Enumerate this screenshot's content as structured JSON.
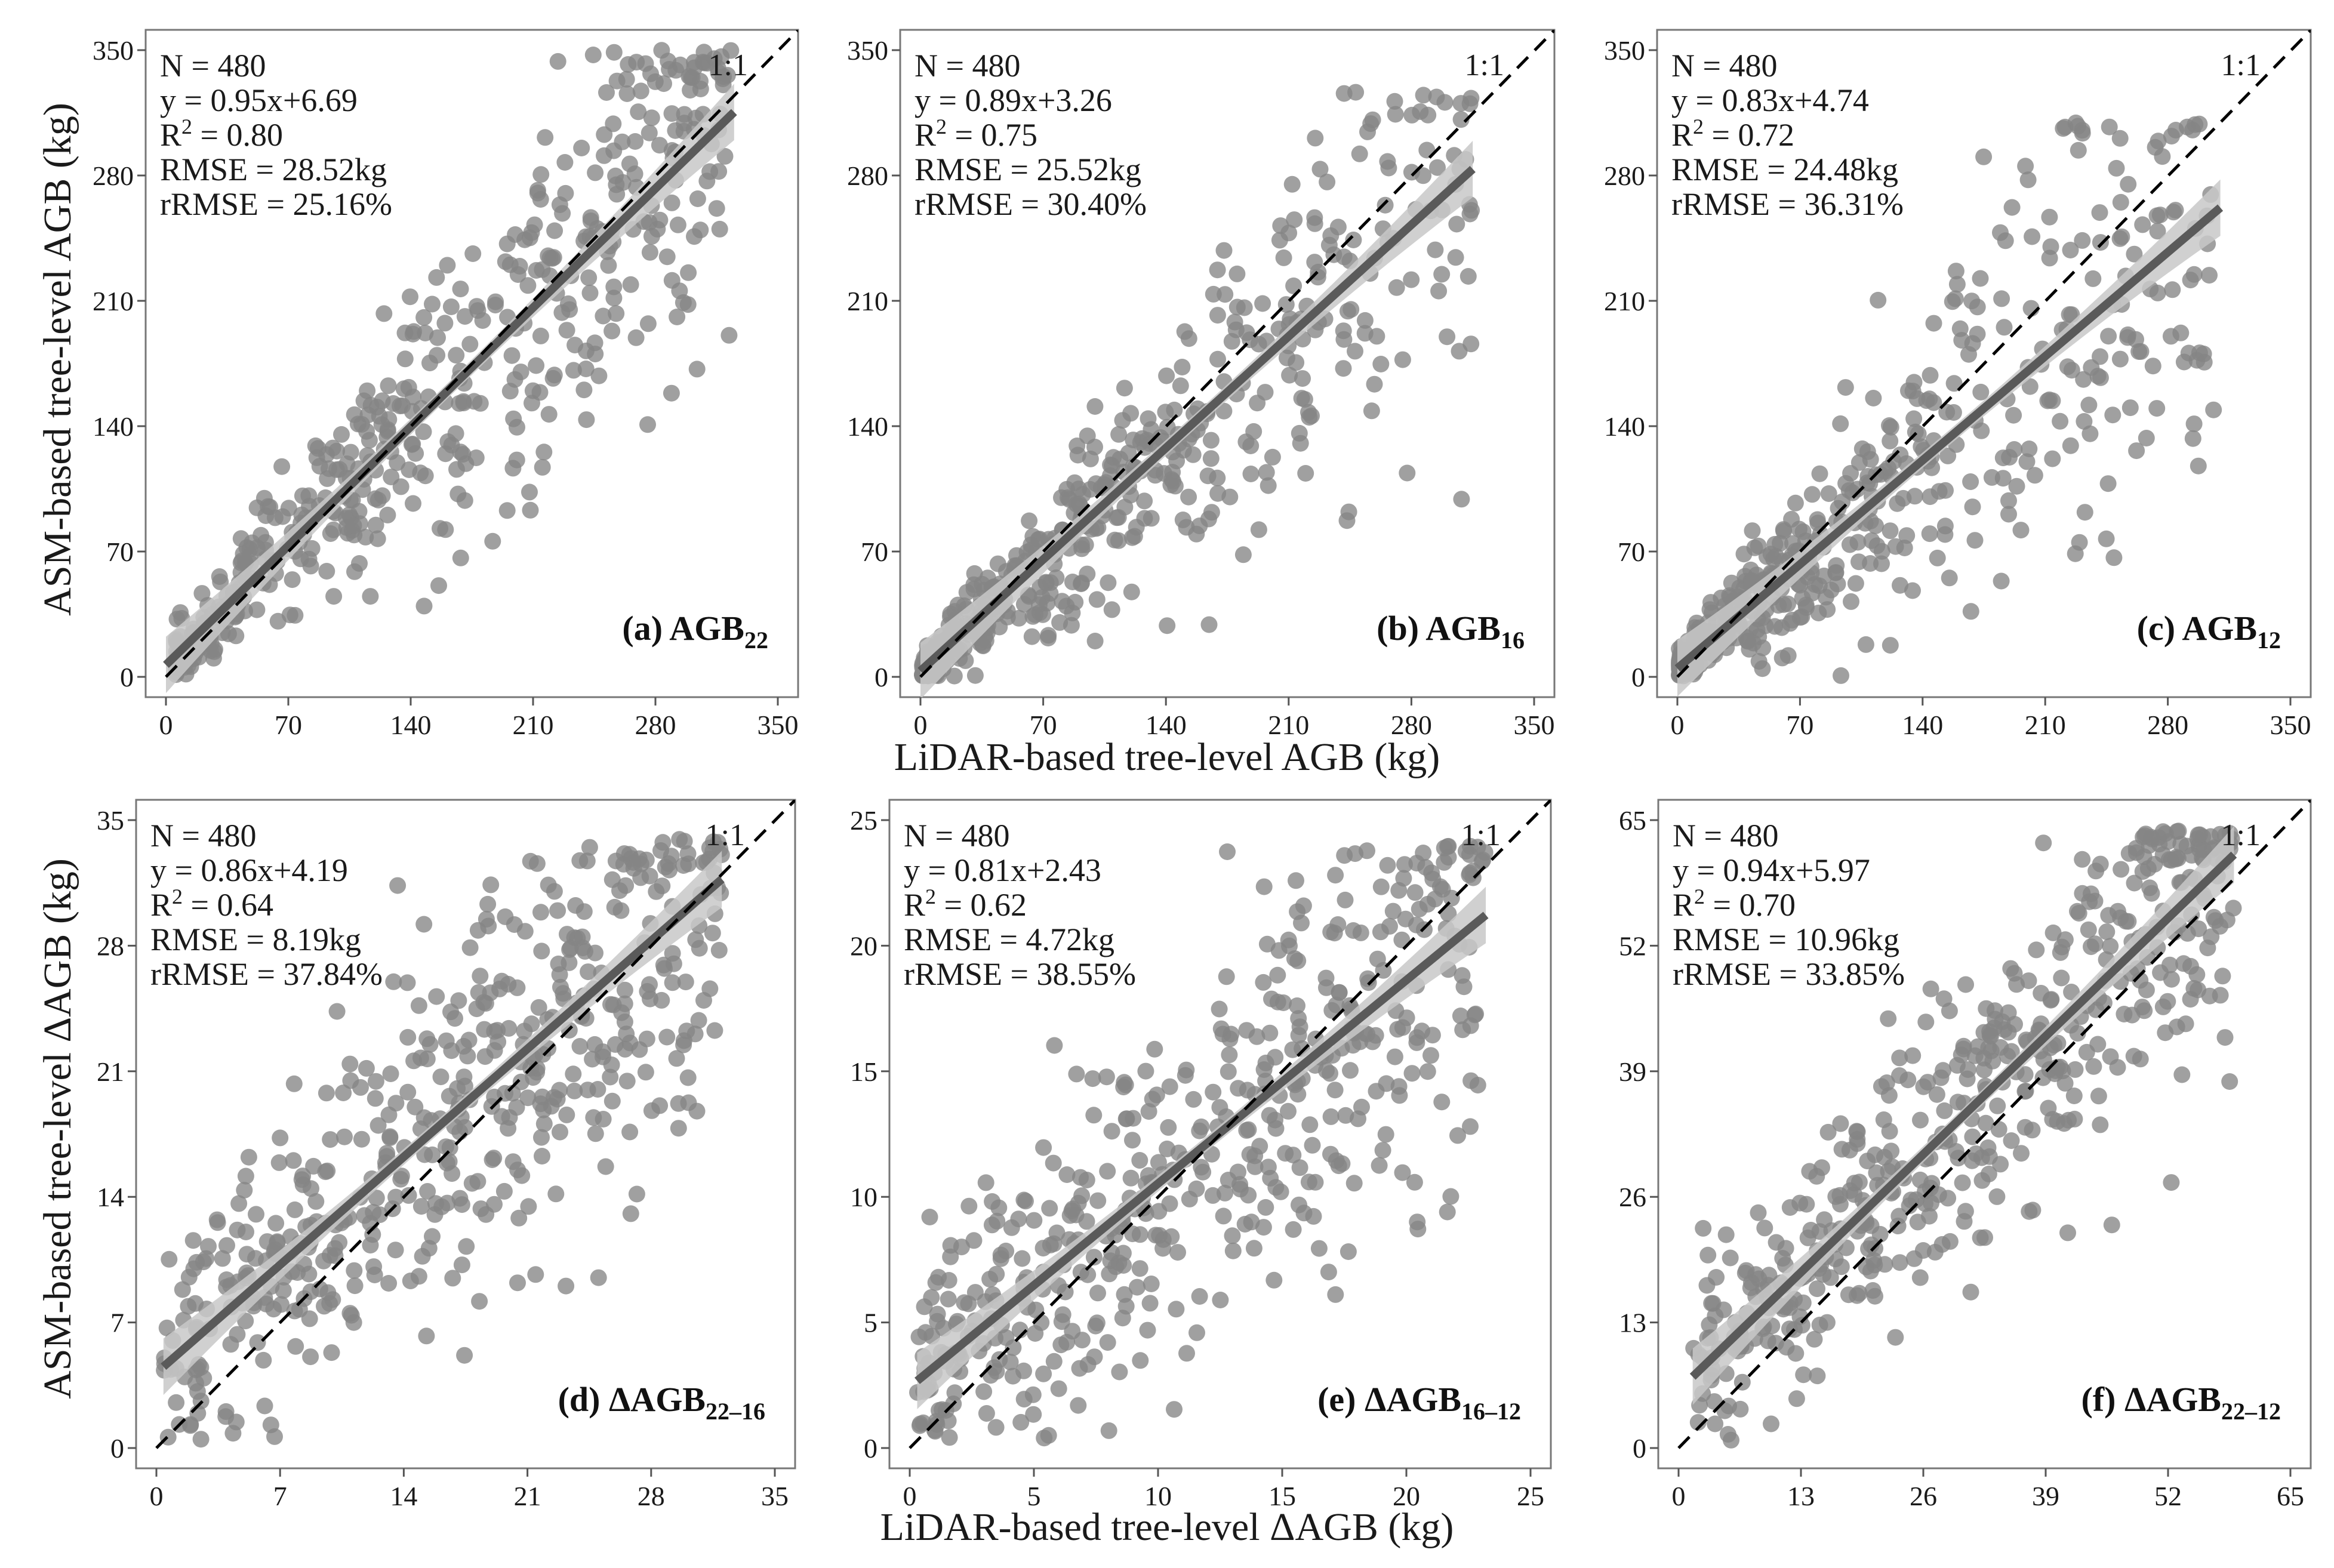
{
  "axis_titles": {
    "y": "ASM-based tree-level AGB (kg)",
    "x_top": "LiDAR-based tree-level AGB (kg)",
    "y_bottom": "ASM-based tree-level ΔAGB (kg)",
    "x_bottom": "LiDAR-based tree-level ΔAGB (kg)"
  },
  "colors": {
    "points": "#858585",
    "fit_line": "#5a5a5a",
    "band": "#c8c8c8",
    "ref_line": "#000000"
  },
  "chart_data": [
    {
      "type": "scatter",
      "id": "a",
      "label_main": "(a) AGB",
      "label_sub": "22",
      "xlim": [
        0,
        350
      ],
      "ylim": [
        0,
        350
      ],
      "xticks": [
        0,
        70,
        140,
        210,
        280,
        350
      ],
      "yticks": [
        0,
        70,
        140,
        210,
        280,
        350
      ],
      "ref_label": "1:1",
      "stats": [
        "N = 480",
        "y = 0.95x+6.69",
        "R² = 0.80",
        "RMSE = 28.52kg",
        "rRMSE = 25.16%"
      ],
      "fit": {
        "slope": 0.95,
        "intercept": 6.69,
        "x_range": [
          0,
          325
        ]
      },
      "n": 480,
      "x_range": [
        5,
        325
      ],
      "x_skew": 1.2,
      "rel_noise": 0.2,
      "abs_noise": 7,
      "y_max": 350
    },
    {
      "type": "scatter",
      "id": "b",
      "label_main": "(b) AGB",
      "label_sub": "16",
      "xlim": [
        0,
        350
      ],
      "ylim": [
        0,
        350
      ],
      "xticks": [
        0,
        70,
        140,
        210,
        280,
        350
      ],
      "yticks": [
        0,
        70,
        140,
        210,
        280,
        350
      ],
      "ref_label": "1:1",
      "stats": [
        "N = 480",
        "y = 0.89x+3.26",
        "R² = 0.75",
        "RMSE = 25.52kg",
        "rRMSE = 30.40%"
      ],
      "fit": {
        "slope": 0.89,
        "intercept": 3.26,
        "x_range": [
          0,
          315
        ]
      },
      "n": 480,
      "x_range": [
        1,
        315
      ],
      "x_skew": 1.55,
      "rel_noise": 0.22,
      "abs_noise": 5,
      "y_max": 330
    },
    {
      "type": "scatter",
      "id": "c",
      "label_main": "(c) AGB",
      "label_sub": "12",
      "xlim": [
        0,
        350
      ],
      "ylim": [
        0,
        350
      ],
      "xticks": [
        0,
        70,
        140,
        210,
        280,
        350
      ],
      "yticks": [
        0,
        70,
        140,
        210,
        280,
        350
      ],
      "ref_label": "1:1",
      "stats": [
        "N = 480",
        "y = 0.83x+4.74",
        "R² = 0.72",
        "RMSE = 24.48kg",
        "rRMSE = 36.31%"
      ],
      "fit": {
        "slope": 0.83,
        "intercept": 4.74,
        "x_range": [
          0,
          310
        ]
      },
      "n": 480,
      "x_range": [
        1,
        310
      ],
      "x_skew": 1.7,
      "rel_noise": 0.26,
      "abs_noise": 5,
      "y_max": 310
    },
    {
      "type": "scatter",
      "id": "d",
      "label_main": "(d) ΔAGB",
      "label_sub": "22–16",
      "xlim": [
        0,
        35
      ],
      "ylim": [
        0,
        35
      ],
      "xticks": [
        0,
        7,
        14,
        21,
        28,
        35
      ],
      "yticks": [
        0,
        7,
        14,
        21,
        28,
        35
      ],
      "ref_label": "1:1",
      "stats": [
        "N = 480",
        "y = 0.86x+4.19",
        "R² = 0.64",
        "RMSE = 8.19kg",
        "rRMSE = 37.84%"
      ],
      "fit": {
        "slope": 0.86,
        "intercept": 4.19,
        "x_range": [
          0.4,
          32
        ]
      },
      "n": 480,
      "x_range": [
        0.4,
        32
      ],
      "x_skew": 1.0,
      "rel_noise": 0.12,
      "abs_noise": 3.2,
      "y_max": 34
    },
    {
      "type": "scatter",
      "id": "e",
      "label_main": "(e) ΔAGB",
      "label_sub": "16–12",
      "xlim": [
        0,
        25
      ],
      "ylim": [
        0,
        25
      ],
      "xticks": [
        0,
        5,
        10,
        15,
        20,
        25
      ],
      "yticks": [
        0,
        5,
        10,
        15,
        20,
        25
      ],
      "ref_label": "1:1",
      "stats": [
        "N = 480",
        "y = 0.81x+2.43",
        "R² = 0.62",
        "RMSE = 4.72kg",
        "rRMSE = 38.55%"
      ],
      "fit": {
        "slope": 0.81,
        "intercept": 2.43,
        "x_range": [
          0.3,
          23.2
        ]
      },
      "n": 480,
      "x_range": [
        0.3,
        23.2
      ],
      "x_skew": 1.0,
      "rel_noise": 0.12,
      "abs_noise": 2.4,
      "y_max": 24
    },
    {
      "type": "scatter",
      "id": "f",
      "label_main": "(f) ΔAGB",
      "label_sub": "22–12",
      "xlim": [
        0,
        65
      ],
      "ylim": [
        0,
        65
      ],
      "xticks": [
        0,
        13,
        26,
        39,
        52,
        65
      ],
      "yticks": [
        0,
        13,
        26,
        39,
        52,
        65
      ],
      "ref_label": "1:1",
      "stats": [
        "N = 480",
        "y = 0.94x+5.97",
        "R² = 0.70",
        "RMSE = 10.96kg",
        "rRMSE = 33.85%"
      ],
      "fit": {
        "slope": 0.94,
        "intercept": 5.97,
        "x_range": [
          1.5,
          59
        ]
      },
      "n": 480,
      "x_range": [
        1.5,
        59
      ],
      "x_skew": 1.0,
      "rel_noise": 0.1,
      "abs_noise": 4.5,
      "y_max": 64
    }
  ]
}
